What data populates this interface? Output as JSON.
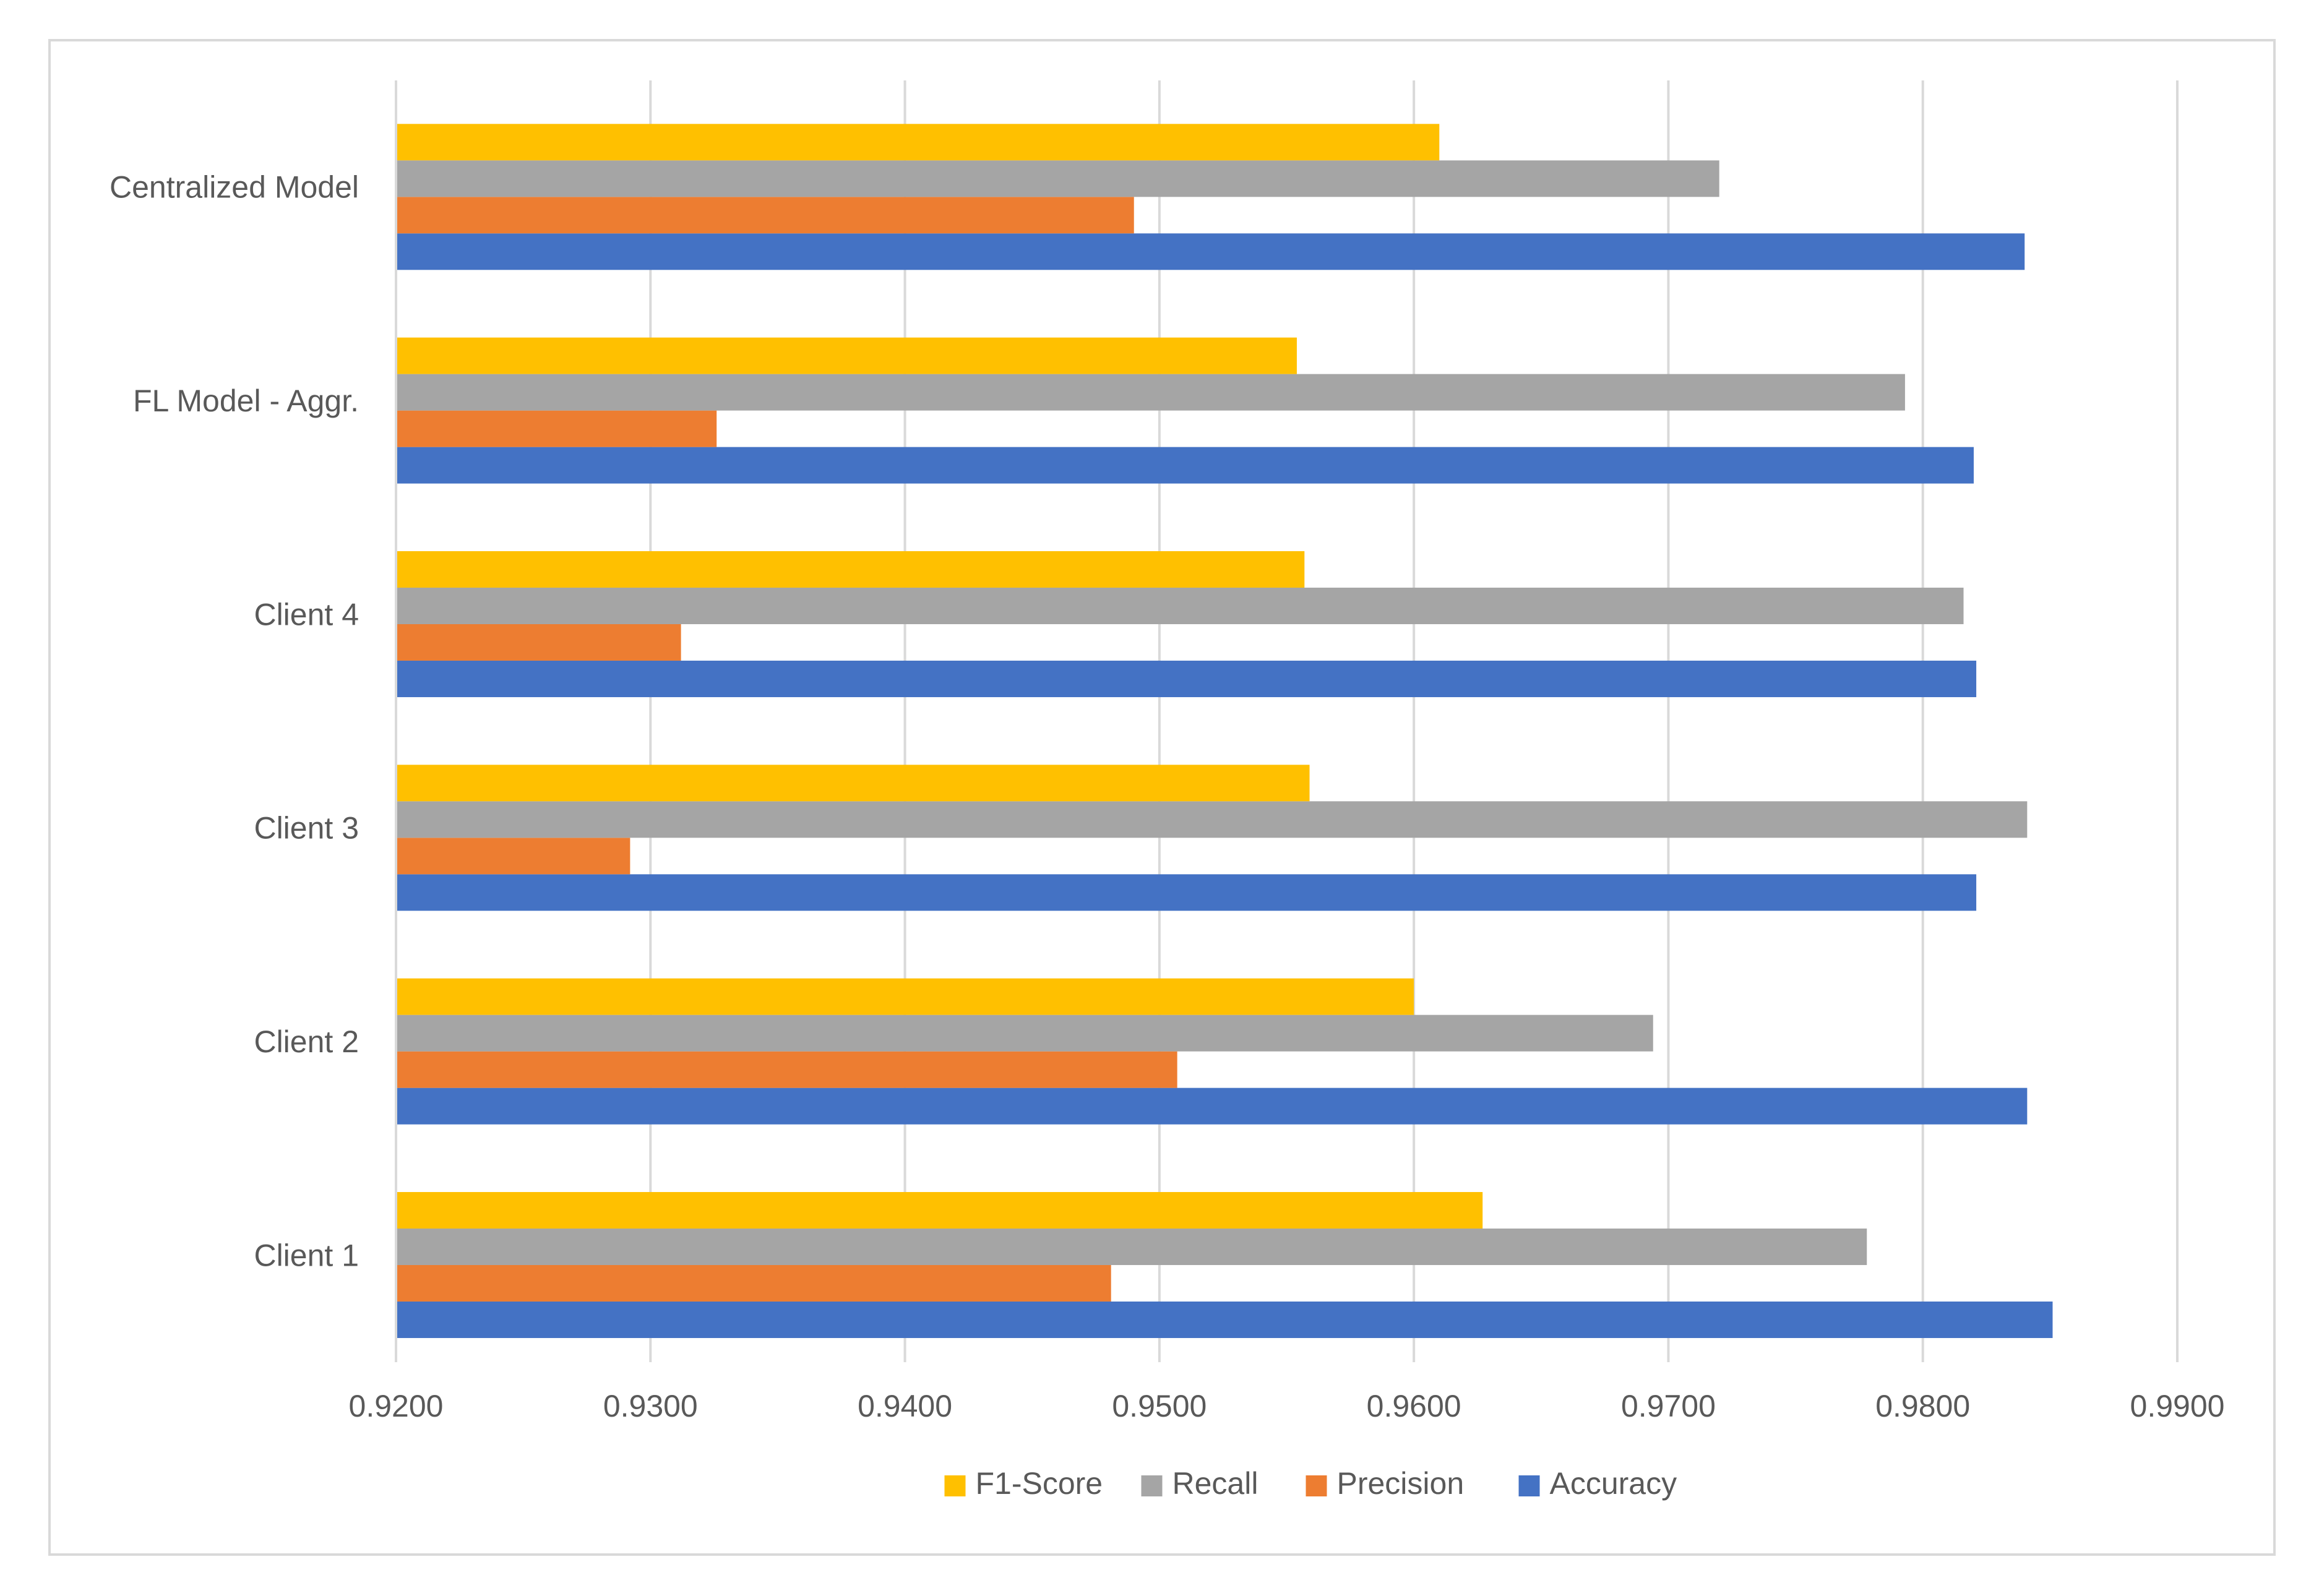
{
  "chart_data": {
    "type": "bar",
    "orientation": "horizontal",
    "title": "",
    "xlabel": "",
    "ylabel": "",
    "xlim": [
      0.92,
      0.99
    ],
    "x_ticks": [
      0.92,
      0.93,
      0.94,
      0.95,
      0.96,
      0.97,
      0.98,
      0.99
    ],
    "x_tick_labels": [
      "0.9200",
      "0.9300",
      "0.9400",
      "0.9500",
      "0.9600",
      "0.9700",
      "0.9800",
      "0.9900"
    ],
    "grid": true,
    "legend_position": "bottom",
    "categories": [
      "Client 1",
      "Client 2",
      "Client 3",
      "Client 4",
      "FL Model - Aggr.",
      "Centralized Model"
    ],
    "series": [
      {
        "name": "Accuracy",
        "color": "#4472C4",
        "values": [
          0.9851,
          0.9841,
          0.9821,
          0.9821,
          0.982,
          0.984
        ]
      },
      {
        "name": "Precision",
        "color": "#ED7D31",
        "values": [
          0.9481,
          0.9507,
          0.9292,
          0.9312,
          0.9326,
          0.949
        ]
      },
      {
        "name": "Recall",
        "color": "#A5A5A5",
        "values": [
          0.9778,
          0.9694,
          0.9841,
          0.9816,
          0.9793,
          0.972
        ]
      },
      {
        "name": "F1-Score",
        "color": "#FFC000",
        "values": [
          0.9627,
          0.96,
          0.9559,
          0.9557,
          0.9554,
          0.961
        ]
      }
    ],
    "legend": [
      "F1-Score",
      "Recall",
      "Precision",
      "Accuracy"
    ]
  }
}
